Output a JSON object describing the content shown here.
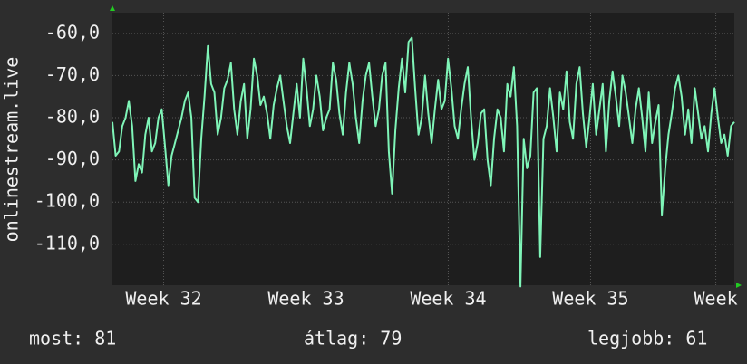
{
  "chart_data": {
    "type": "line",
    "y_label": "onlinestream.live",
    "ylim": [
      -119.7,
      -55.1
    ],
    "yticks": [
      {
        "value": -60,
        "label": "-60,0"
      },
      {
        "value": -70,
        "label": "-70,0"
      },
      {
        "value": -80,
        "label": "-80,0"
      },
      {
        "value": -90,
        "label": "-90,0"
      },
      {
        "value": -100,
        "label": "-100,0"
      },
      {
        "value": -110,
        "label": "-110,0"
      }
    ],
    "xlim": [
      31.64,
      36.01
    ],
    "xticks": [
      {
        "value": 32,
        "label": "Week 32"
      },
      {
        "value": 33,
        "label": "Week 33"
      },
      {
        "value": 34,
        "label": "Week 34"
      },
      {
        "value": 35,
        "label": "Week 35"
      },
      {
        "value": 35.88,
        "label": "Week"
      }
    ],
    "grid": true,
    "series": [
      {
        "color": "#7ff5b8",
        "values": [
          -81,
          -89,
          -88,
          -82,
          -80,
          -76,
          -82,
          -95,
          -91,
          -93,
          -84,
          -80,
          -88,
          -86,
          -80,
          -78,
          -87,
          -96,
          -89,
          -86,
          -83,
          -80,
          -76,
          -74,
          -80,
          -99,
          -100,
          -85,
          -75,
          -63,
          -72,
          -74,
          -84,
          -80,
          -73,
          -71,
          -67,
          -78,
          -84,
          -76,
          -72,
          -85,
          -78,
          -66,
          -70,
          -77,
          -75,
          -79,
          -85,
          -77,
          -73,
          -70,
          -76,
          -82,
          -86,
          -79,
          -72,
          -80,
          -66,
          -73,
          -82,
          -78,
          -70,
          -75,
          -83,
          -80,
          -78,
          -67,
          -71,
          -79,
          -84,
          -74,
          -67,
          -72,
          -80,
          -86,
          -76,
          -70,
          -67,
          -75,
          -82,
          -78,
          -70,
          -67,
          -88,
          -98,
          -83,
          -73,
          -66,
          -74,
          -62,
          -61,
          -73,
          -84,
          -80,
          -70,
          -79,
          -86,
          -78,
          -71,
          -78,
          -76,
          -66,
          -73,
          -82,
          -85,
          -78,
          -72,
          -68,
          -80,
          -90,
          -86,
          -79,
          -78,
          -90,
          -96,
          -85,
          -78,
          -80,
          -88,
          -72,
          -75,
          -68,
          -82,
          -120,
          -85,
          -92,
          -89,
          -74,
          -73,
          -113,
          -85,
          -82,
          -73,
          -80,
          -88,
          -74,
          -78,
          -69,
          -81,
          -85,
          -72,
          -68,
          -79,
          -87,
          -80,
          -72,
          -84,
          -78,
          -72,
          -88,
          -76,
          -69,
          -75,
          -82,
          -70,
          -74,
          -80,
          -86,
          -78,
          -73,
          -80,
          -88,
          -74,
          -86,
          -81,
          -77,
          -103,
          -92,
          -84,
          -79,
          -73,
          -70,
          -75,
          -84,
          -78,
          -86,
          -73,
          -79,
          -85,
          -82,
          -88,
          -79,
          -73,
          -80,
          -86,
          -84,
          -89,
          -82,
          -81
        ]
      }
    ],
    "footer": [
      "most: 81",
      "átlag: 79",
      "legjobb: 61"
    ]
  }
}
